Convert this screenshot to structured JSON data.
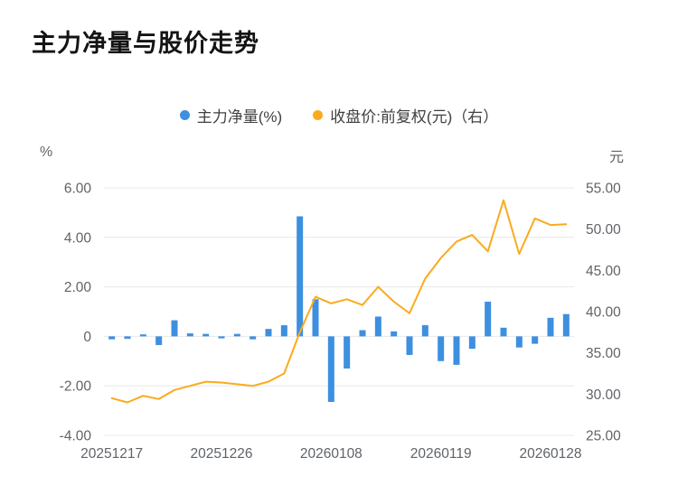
{
  "title": "主力净量与股价走势",
  "legend": [
    {
      "label": "主力净量(%)",
      "color": "#3D8FE0"
    },
    {
      "label": "收盘价:前复权(元)（右）",
      "color": "#FBAA1D"
    }
  ],
  "axes": {
    "left_unit": "%",
    "right_unit": "元"
  },
  "chart_data": {
    "type": "bar",
    "title": "主力净量与股价走势",
    "n_points": 30,
    "series": [
      {
        "name": "主力净量(%)",
        "type": "bar",
        "axis": "left",
        "color": "#3D8FE0",
        "values": [
          -0.12,
          -0.1,
          0.08,
          -0.35,
          0.65,
          0.12,
          0.1,
          -0.08,
          0.1,
          -0.12,
          0.3,
          0.45,
          4.85,
          1.5,
          -2.65,
          -1.3,
          0.25,
          0.8,
          0.2,
          -0.75,
          0.45,
          -1.0,
          -1.15,
          -0.5,
          1.4,
          0.35,
          -0.45,
          -0.3,
          0.75,
          0.9
        ]
      },
      {
        "name": "收盘价:前复权(元)（右）",
        "type": "line",
        "axis": "right",
        "color": "#FBAA1D",
        "values": [
          29.5,
          29.0,
          29.8,
          29.4,
          30.5,
          31.0,
          31.5,
          31.4,
          31.2,
          31.0,
          31.5,
          32.5,
          37.5,
          41.8,
          41.0,
          41.5,
          40.8,
          43.0,
          41.2,
          39.8,
          44.0,
          46.5,
          48.5,
          49.3,
          47.3,
          53.5,
          47.0,
          51.3,
          50.5,
          50.6
        ]
      }
    ],
    "left_axis": {
      "min": -4,
      "max": 6,
      "ticks": [
        6,
        4,
        2,
        0,
        -2,
        -4
      ],
      "tick_labels": [
        "6.00",
        "4.00",
        "2.00",
        "0",
        "-2.00",
        "-4.00"
      ],
      "unit": "%"
    },
    "right_axis": {
      "min": 25,
      "max": 55,
      "ticks": [
        55,
        50,
        45,
        40,
        35,
        30,
        25
      ],
      "tick_labels": [
        "55.00",
        "50.00",
        "45.00",
        "40.00",
        "35.00",
        "30.00",
        "25.00"
      ],
      "unit": "元"
    },
    "x_ticks": [
      {
        "index": 0,
        "label": "20251217"
      },
      {
        "index": 7,
        "label": "20251226"
      },
      {
        "index": 14,
        "label": "20260108"
      },
      {
        "index": 21,
        "label": "20260119"
      },
      {
        "index": 28,
        "label": "20260128"
      }
    ],
    "grid": true,
    "legend_position": "top-center"
  }
}
